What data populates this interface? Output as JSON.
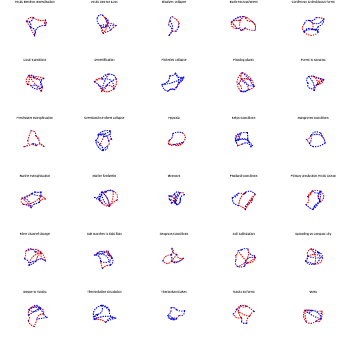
{
  "colors": {
    "positive": "#0000ee",
    "negative": "#ee0000",
    "background": "#ffffff"
  },
  "panels": [
    {
      "title": "Arctic Benthos Borealisation"
    },
    {
      "title": "Arctic Sea-Ice Loss"
    },
    {
      "title": "Bivalves collapse"
    },
    {
      "title": "Bush encroachment"
    },
    {
      "title": "Coniferous to deciduous forest"
    },
    {
      "title": "Coral transitions"
    },
    {
      "title": "Desertification"
    },
    {
      "title": "Fisheries collapse"
    },
    {
      "title": "Floating plants"
    },
    {
      "title": "Forest to savanna"
    },
    {
      "title": "Freshwater eutrophication"
    },
    {
      "title": "Greenland Ice Sheet collapse"
    },
    {
      "title": "Hypoxia"
    },
    {
      "title": "Kelps transitions"
    },
    {
      "title": "Mangroves transitions"
    },
    {
      "title": "Marine eutrophication"
    },
    {
      "title": "Marine foodwebs"
    },
    {
      "title": "Monsoon"
    },
    {
      "title": "Peatland transitions"
    },
    {
      "title": "Primary production Arctic Ocean"
    },
    {
      "title": "River channel change"
    },
    {
      "title": "Salt marshes to tidal flats"
    },
    {
      "title": "Seagrass transitions"
    },
    {
      "title": "Soil Salinization"
    },
    {
      "title": "Sprawling vs compact city"
    },
    {
      "title": "Steppe to Tundra"
    },
    {
      "title": "Thermohaline circulation"
    },
    {
      "title": "Thermokarst lakes"
    },
    {
      "title": "Tundra to forest"
    },
    {
      "title": "WAIS"
    }
  ]
}
